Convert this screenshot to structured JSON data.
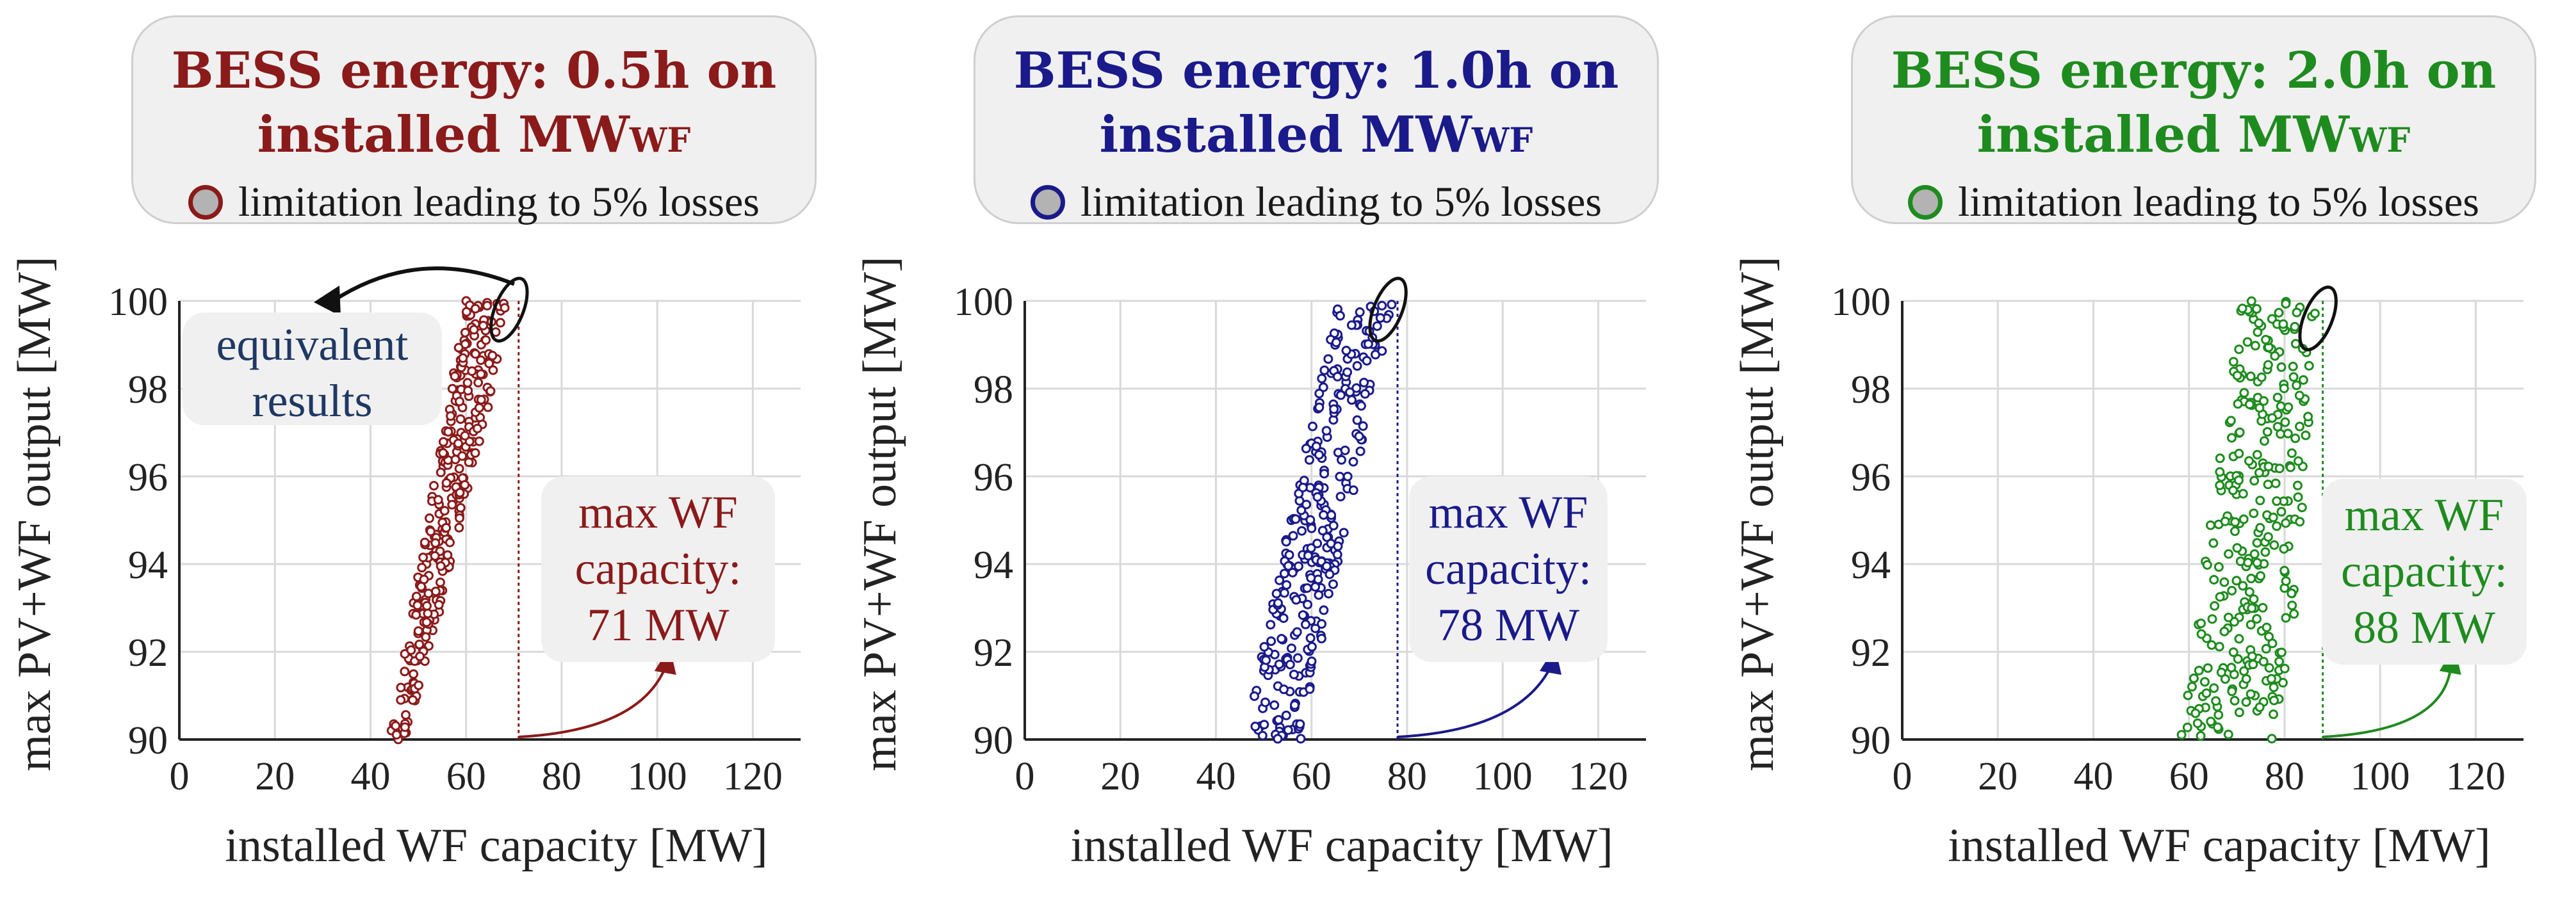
{
  "figure": {
    "legend_marker_text": "limitation leading to 5% losses",
    "title_suffix": "installed MW",
    "title_subscript": "WF",
    "equivalent_label": "equivalent results"
  },
  "colors": {
    "panel1": "#8b1a1a",
    "panel2": "#1a1a8b",
    "panel3": "#1e8b1e",
    "equivalent_text": "#1f3864",
    "grid": "#d9d9d9",
    "axis": "#222222"
  },
  "chart_data": [
    {
      "type": "scatter",
      "title": "BESS energy: 0.5h on",
      "xlabel": "installed WF capacity [MW]",
      "ylabel": "max PV+WF output [MW]",
      "xlim": [
        0,
        130
      ],
      "ylim": [
        90,
        100
      ],
      "xticks": [
        0,
        20,
        40,
        60,
        80,
        100,
        120
      ],
      "yticks": [
        90,
        92,
        94,
        96,
        98,
        100
      ],
      "point_band": {
        "y_min": 90,
        "y_max": 100,
        "x_left_at_ymin": 44,
        "x_left_at_ymax": 60,
        "x_right_at_ymin": 48,
        "x_right_at_ymax": 70,
        "count": 300
      },
      "max_wf_capacity_mw": 71,
      "annotation_lines": [
        "max WF",
        "capacity:",
        "71 MW"
      ],
      "losses_marker": {
        "x": 69,
        "y": 99.8
      }
    },
    {
      "type": "scatter",
      "title": "BESS energy: 1.0h on",
      "xlabel": "installed WF capacity [MW]",
      "ylabel": "max PV+WF output [MW]",
      "xlim": [
        0,
        130
      ],
      "ylim": [
        90,
        100
      ],
      "xticks": [
        0,
        20,
        40,
        60,
        80,
        100,
        120
      ],
      "yticks": [
        90,
        92,
        94,
        96,
        98,
        100
      ],
      "point_band": {
        "y_min": 90,
        "y_max": 100,
        "x_left_at_ymin": 46,
        "x_left_at_ymax": 65,
        "x_right_at_ymin": 58,
        "x_right_at_ymax": 77,
        "count": 300
      },
      "max_wf_capacity_mw": 78,
      "annotation_lines": [
        "max WF",
        "capacity:",
        "78 MW"
      ],
      "losses_marker": {
        "x": 76,
        "y": 99.8
      }
    },
    {
      "type": "scatter",
      "title": "BESS energy: 2.0h on",
      "xlabel": "installed WF capacity [MW]",
      "ylabel": "max PV+WF output [MW]",
      "xlim": [
        0,
        130
      ],
      "ylim": [
        90,
        100
      ],
      "xticks": [
        0,
        20,
        40,
        60,
        80,
        100,
        120
      ],
      "yticks": [
        90,
        92,
        94,
        96,
        98,
        100
      ],
      "point_band": {
        "y_min": 90,
        "y_max": 100,
        "x_left_at_ymin": 58,
        "x_left_at_ymax": 71,
        "x_right_at_ymin": 80,
        "x_right_at_ymax": 87,
        "count": 300
      },
      "max_wf_capacity_mw": 88,
      "annotation_lines": [
        "max WF",
        "capacity:",
        "88 MW"
      ],
      "losses_marker": {
        "x": 87,
        "y": 99.6
      }
    }
  ]
}
